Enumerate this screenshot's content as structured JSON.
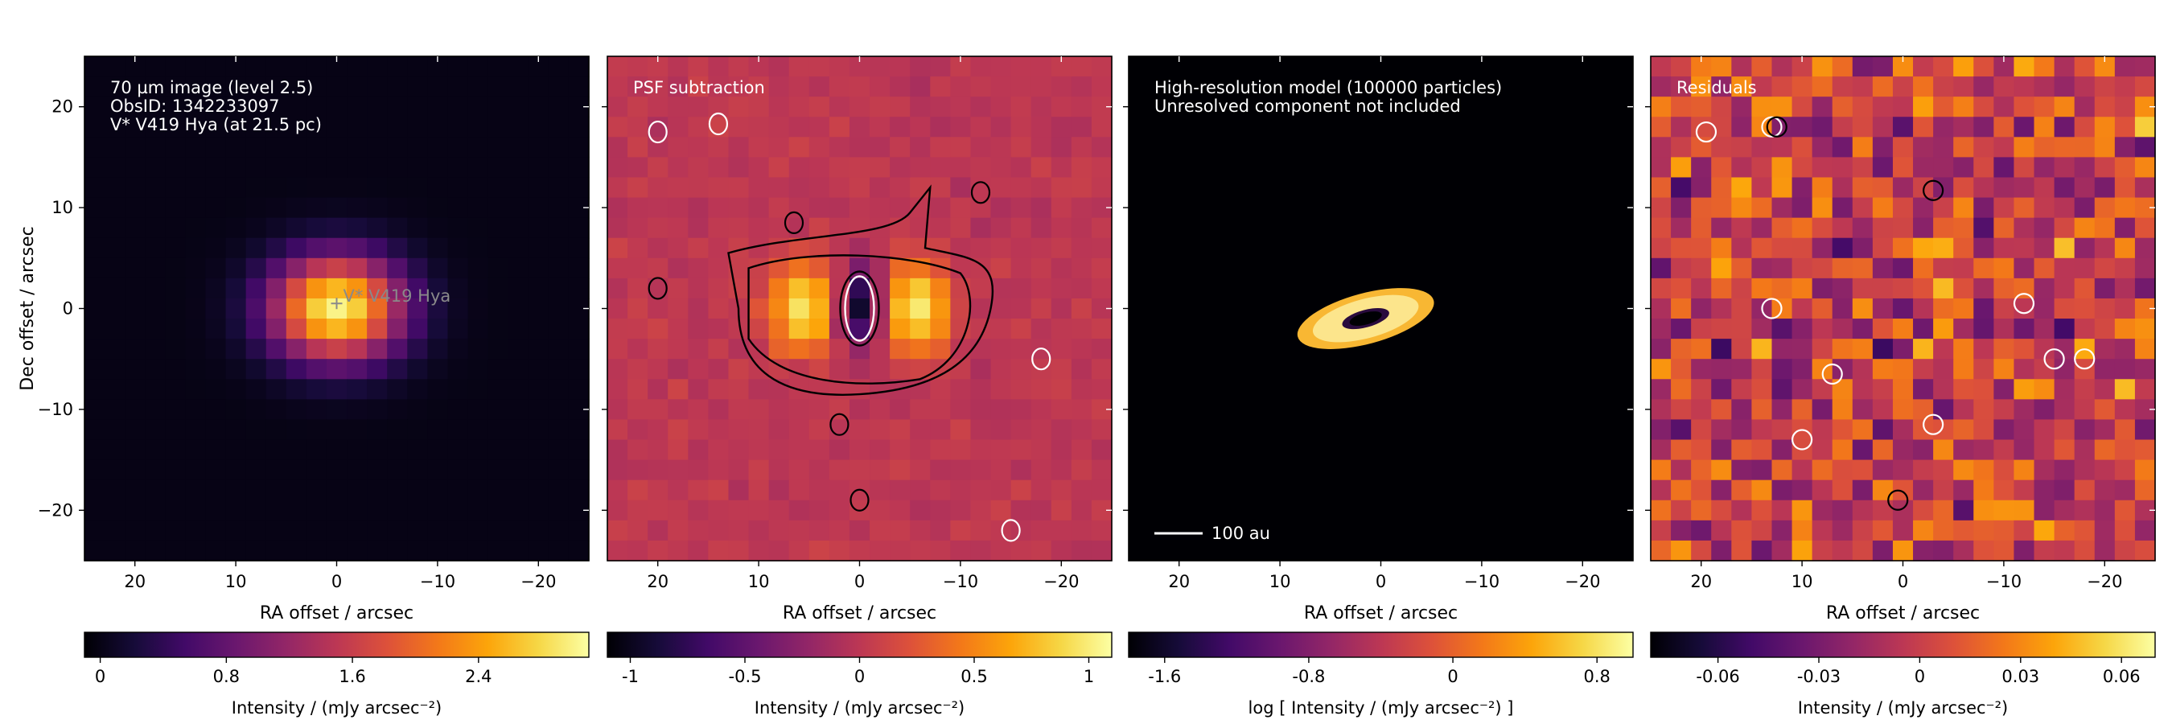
{
  "chart_data": [
    {
      "type": "heatmap",
      "xlabel": "RA offset / arcsec",
      "ylabel": "Dec offset / arcsec",
      "xlim": [
        25,
        -25
      ],
      "ylim": [
        -25,
        25
      ],
      "xticks": [
        20,
        10,
        0,
        -10,
        -20
      ],
      "xtick_labels": [
        "20",
        "10",
        "0",
        "−10",
        "−20"
      ],
      "yticks": [
        20,
        10,
        0,
        -10,
        -20
      ],
      "ytick_labels": [
        "20",
        "10",
        "0",
        "−10",
        "−20"
      ],
      "annotations": [
        "70 µm image (level 2.5)",
        "ObsID: 1342233097",
        "V* V419 Hya (at 21.5 pc)"
      ],
      "source_marker": {
        "x": 0,
        "y": 0.5,
        "label": "V* V419 Hya"
      },
      "colormap": "inferno",
      "colorbar": {
        "label": "Intensity / (mJy arcsec⁻²)",
        "range": [
          -0.1,
          3.1
        ],
        "ticks": [
          0,
          0.8,
          1.6,
          2.4
        ],
        "tick_labels": [
          "0",
          "0.8",
          "1.6",
          "2.4"
        ]
      },
      "source": {
        "x": 0,
        "y": 0,
        "peak": 3.0,
        "sigma_x": 4.5,
        "sigma_y": 3.6
      }
    },
    {
      "type": "heatmap",
      "xlabel": "RA offset / arcsec",
      "xlim": [
        25,
        -25
      ],
      "ylim": [
        -25,
        25
      ],
      "xticks": [
        20,
        10,
        0,
        -10,
        -20
      ],
      "xtick_labels": [
        "20",
        "10",
        "0",
        "−10",
        "−20"
      ],
      "annotations": [
        "PSF subtraction"
      ],
      "colormap": "inferno",
      "colorbar": {
        "label": "Intensity / (mJy arcsec⁻²)",
        "range": [
          -1.1,
          1.1
        ],
        "ticks": [
          -1,
          -0.5,
          0,
          0.5,
          1
        ],
        "tick_labels": [
          "-1",
          "-0.5",
          "0",
          "0.5",
          "1"
        ]
      },
      "residual_lobes": [
        {
          "x": 5.5,
          "y": 0,
          "peak": 1.0
        },
        {
          "x": -5.5,
          "y": 0,
          "peak": 1.0
        },
        {
          "x": 0,
          "y": 0,
          "peak": -1.0
        }
      ]
    },
    {
      "type": "heatmap",
      "xlabel": "RA offset / arcsec",
      "xlim": [
        25,
        -25
      ],
      "ylim": [
        -25,
        25
      ],
      "xticks": [
        20,
        10,
        0,
        -10,
        -20
      ],
      "xtick_labels": [
        "20",
        "10",
        "0",
        "−10",
        "−20"
      ],
      "annotations": [
        "High-resolution model (100000 particles)",
        "Unresolved component not included"
      ],
      "scale_bar": {
        "label": "100 au"
      },
      "colormap": "inferno",
      "colorbar": {
        "label": "log [ Intensity / (mJy arcsec⁻²) ]",
        "range": [
          -1.8,
          1.0
        ],
        "ticks": [
          -1.6,
          -0.8,
          0,
          0.8
        ],
        "tick_labels": [
          "-1.6",
          "-0.8",
          "0",
          "0.8"
        ]
      },
      "disk_model": {
        "x": 1.5,
        "y": -1.0,
        "outer_radius": 4.5,
        "inner_radius": 1.5,
        "axis_ratio": 0.36,
        "position_angle_deg": 15
      }
    },
    {
      "type": "heatmap",
      "xlabel": "RA offset / arcsec",
      "xlim": [
        25,
        -25
      ],
      "ylim": [
        -25,
        25
      ],
      "xticks": [
        20,
        10,
        0,
        -10,
        -20
      ],
      "xtick_labels": [
        "20",
        "10",
        "0",
        "−10",
        "−20"
      ],
      "annotations": [
        "Residuals"
      ],
      "colormap": "inferno",
      "colorbar": {
        "label": "Intensity / (mJy arcsec⁻²)",
        "range": [
          -0.08,
          0.07
        ],
        "ticks": [
          -0.06,
          -0.03,
          0,
          0.03,
          0.06
        ],
        "tick_labels": [
          "-0.06",
          "-0.03",
          "0",
          "0.03",
          "0.06"
        ]
      },
      "noise_rms": 0.03
    }
  ]
}
